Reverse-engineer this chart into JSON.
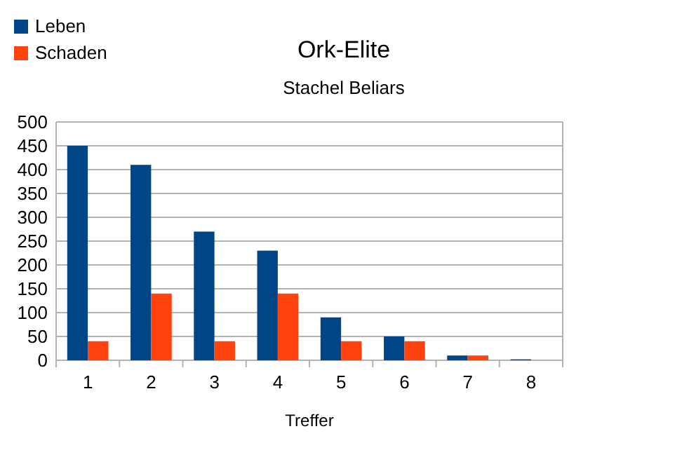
{
  "chart_data": {
    "type": "bar",
    "title": "Ork-Elite",
    "subtitle": "Stachel Beliars",
    "xlabel": "Treffer",
    "categories": [
      "1",
      "2",
      "3",
      "4",
      "5",
      "6",
      "7",
      "8"
    ],
    "series": [
      {
        "name": "Leben",
        "color": "#004586",
        "values": [
          450,
          410,
          270,
          230,
          90,
          50,
          10,
          2
        ]
      },
      {
        "name": "Schaden",
        "color": "#ff420e",
        "values": [
          40,
          140,
          40,
          140,
          40,
          40,
          10,
          0
        ]
      }
    ],
    "ylim": [
      0,
      500
    ],
    "yticks": [
      0,
      50,
      100,
      150,
      200,
      250,
      300,
      350,
      400,
      450,
      500
    ],
    "grid": "y",
    "legend": "top left"
  }
}
